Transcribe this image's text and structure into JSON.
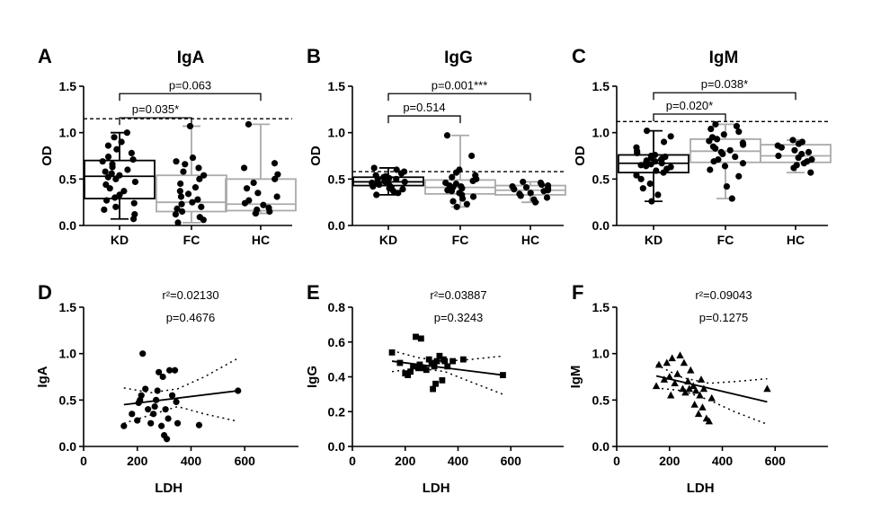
{
  "chart_data": [
    {
      "type": "box",
      "panel": "A",
      "title": "IgA",
      "ylabel": "OD",
      "ylim": [
        0,
        1.5
      ],
      "yticks": [
        "0.0",
        "0.5",
        "1.0",
        "1.5"
      ],
      "categories": [
        "KD",
        "FC",
        "HC"
      ],
      "threshold": 1.15,
      "groups": [
        {
          "name": "KD",
          "color": "#000000",
          "min": 0.07,
          "q1": 0.29,
          "median": 0.53,
          "q3": 0.7,
          "max": 1.0,
          "points": [
            0.07,
            0.12,
            0.17,
            0.2,
            0.24,
            0.27,
            0.3,
            0.33,
            0.37,
            0.4,
            0.44,
            0.47,
            0.5,
            0.52,
            0.54,
            0.56,
            0.58,
            0.6,
            0.63,
            0.66,
            0.69,
            0.71,
            0.74,
            0.78,
            0.82,
            0.86,
            0.9,
            0.95,
            1.0
          ]
        },
        {
          "name": "FC",
          "color": "#aaaaaa",
          "min": 0.03,
          "q1": 0.15,
          "median": 0.25,
          "q3": 0.54,
          "max": 1.07,
          "points": [
            0.03,
            0.06,
            0.09,
            0.12,
            0.15,
            0.18,
            0.2,
            0.23,
            0.25,
            0.28,
            0.31,
            0.34,
            0.37,
            0.41,
            0.45,
            0.5,
            0.54,
            0.58,
            0.62,
            0.66,
            0.69,
            0.73,
            1.07
          ]
        },
        {
          "name": "HC",
          "color": "#aaaaaa",
          "min": 0.13,
          "q1": 0.16,
          "median": 0.23,
          "q3": 0.5,
          "max": 1.09,
          "points": [
            0.13,
            0.15,
            0.17,
            0.19,
            0.22,
            0.24,
            0.27,
            0.31,
            0.35,
            0.4,
            0.46,
            0.5,
            0.55,
            0.62,
            0.67,
            1.09
          ]
        }
      ],
      "comparisons": [
        {
          "from": "KD",
          "to": "FC",
          "label": "p=0.035*",
          "y": 1.16
        },
        {
          "from": "KD",
          "to": "HC",
          "label": "p=0.063",
          "y": 1.42
        }
      ]
    },
    {
      "type": "box",
      "panel": "B",
      "title": "IgG",
      "ylabel": "OD",
      "ylim": [
        0,
        1.5
      ],
      "yticks": [
        "0.0",
        "0.5",
        "1.0",
        "1.5"
      ],
      "categories": [
        "KD",
        "FC",
        "HC"
      ],
      "threshold": 0.58,
      "groups": [
        {
          "name": "KD",
          "color": "#000000",
          "min": 0.33,
          "q1": 0.43,
          "median": 0.47,
          "q3": 0.52,
          "max": 0.62,
          "points": [
            0.33,
            0.35,
            0.37,
            0.39,
            0.4,
            0.41,
            0.42,
            0.43,
            0.44,
            0.45,
            0.45,
            0.46,
            0.47,
            0.47,
            0.48,
            0.49,
            0.5,
            0.5,
            0.51,
            0.52,
            0.53,
            0.54,
            0.56,
            0.58,
            0.6,
            0.62
          ]
        },
        {
          "name": "FC",
          "color": "#aaaaaa",
          "min": 0.2,
          "q1": 0.34,
          "median": 0.41,
          "q3": 0.49,
          "max": 0.97,
          "points": [
            0.2,
            0.23,
            0.26,
            0.29,
            0.31,
            0.33,
            0.35,
            0.37,
            0.38,
            0.4,
            0.41,
            0.42,
            0.43,
            0.45,
            0.46,
            0.48,
            0.5,
            0.52,
            0.54,
            0.57,
            0.6,
            0.75,
            0.97
          ]
        },
        {
          "name": "HC",
          "color": "#aaaaaa",
          "min": 0.25,
          "q1": 0.33,
          "median": 0.38,
          "q3": 0.43,
          "max": 0.47,
          "points": [
            0.25,
            0.28,
            0.3,
            0.32,
            0.34,
            0.35,
            0.37,
            0.38,
            0.39,
            0.4,
            0.41,
            0.42,
            0.43,
            0.44,
            0.46,
            0.47
          ]
        }
      ],
      "comparisons": [
        {
          "from": "KD",
          "to": "FC",
          "label": "p=0.514",
          "y": 1.18
        },
        {
          "from": "KD",
          "to": "HC",
          "label": "p=0.001***",
          "y": 1.42
        }
      ]
    },
    {
      "type": "box",
      "panel": "C",
      "title": "IgM",
      "ylabel": "OD",
      "ylim": [
        0,
        1.5
      ],
      "yticks": [
        "0.0",
        "0.5",
        "1.0",
        "1.5"
      ],
      "categories": [
        "KD",
        "FC",
        "HC"
      ],
      "threshold": 1.12,
      "groups": [
        {
          "name": "KD",
          "color": "#000000",
          "min": 0.26,
          "q1": 0.57,
          "median": 0.67,
          "q3": 0.76,
          "max": 1.02,
          "points": [
            0.26,
            0.33,
            0.4,
            0.45,
            0.5,
            0.54,
            0.57,
            0.59,
            0.61,
            0.63,
            0.64,
            0.65,
            0.66,
            0.67,
            0.68,
            0.69,
            0.7,
            0.71,
            0.72,
            0.73,
            0.74,
            0.75,
            0.76,
            0.78,
            0.8,
            0.84,
            0.9,
            0.96,
            1.02
          ]
        },
        {
          "name": "FC",
          "color": "#aaaaaa",
          "min": 0.29,
          "q1": 0.68,
          "median": 0.8,
          "q3": 0.93,
          "max": 1.09,
          "points": [
            0.29,
            0.42,
            0.53,
            0.6,
            0.64,
            0.67,
            0.69,
            0.71,
            0.74,
            0.77,
            0.79,
            0.81,
            0.83,
            0.85,
            0.87,
            0.89,
            0.91,
            0.93,
            0.95,
            0.98,
            1.01,
            1.04,
            1.07,
            1.09
          ]
        },
        {
          "name": "HC",
          "color": "#aaaaaa",
          "min": 0.57,
          "q1": 0.68,
          "median": 0.75,
          "q3": 0.87,
          "max": 0.92,
          "points": [
            0.57,
            0.62,
            0.65,
            0.67,
            0.69,
            0.71,
            0.73,
            0.75,
            0.77,
            0.79,
            0.81,
            0.84,
            0.86,
            0.88,
            0.9,
            0.92
          ]
        }
      ],
      "comparisons": [
        {
          "from": "KD",
          "to": "FC",
          "label": "p=0.020*",
          "y": 1.2
        },
        {
          "from": "KD",
          "to": "HC",
          "label": "p=0.038*",
          "y": 1.43
        }
      ]
    },
    {
      "type": "scatter",
      "panel": "D",
      "ylabel": "IgA",
      "xlabel": "LDH",
      "xlim": [
        0,
        800
      ],
      "ylim": [
        0,
        1.5
      ],
      "xticks": [
        "0",
        "200",
        "400",
        "600"
      ],
      "yticks": [
        "0.0",
        "0.5",
        "1.0",
        "1.5"
      ],
      "marker": "circle",
      "r2_label": "r²=0.02130",
      "p_label": "p=0.4676",
      "regression": {
        "x0": 150,
        "y0": 0.45,
        "x1": 575,
        "y1": 0.6
      },
      "ci_upper": [
        [
          150,
          0.63
        ],
        [
          250,
          0.58
        ],
        [
          350,
          0.62
        ],
        [
          450,
          0.75
        ],
        [
          575,
          0.95
        ]
      ],
      "ci_lower": [
        [
          150,
          0.25
        ],
        [
          250,
          0.34
        ],
        [
          350,
          0.43
        ],
        [
          450,
          0.35
        ],
        [
          575,
          0.27
        ]
      ],
      "points": [
        [
          150,
          0.22
        ],
        [
          180,
          0.35
        ],
        [
          200,
          0.28
        ],
        [
          205,
          0.47
        ],
        [
          210,
          0.5
        ],
        [
          215,
          0.55
        ],
        [
          220,
          1.0
        ],
        [
          230,
          0.62
        ],
        [
          240,
          0.4
        ],
        [
          250,
          0.25
        ],
        [
          260,
          0.35
        ],
        [
          265,
          0.43
        ],
        [
          270,
          0.5
        ],
        [
          275,
          0.6
        ],
        [
          280,
          0.8
        ],
        [
          290,
          0.22
        ],
        [
          295,
          0.75
        ],
        [
          300,
          0.12
        ],
        [
          305,
          0.4
        ],
        [
          310,
          0.08
        ],
        [
          315,
          0.3
        ],
        [
          320,
          0.82
        ],
        [
          330,
          0.55
        ],
        [
          340,
          0.82
        ],
        [
          345,
          0.48
        ],
        [
          350,
          0.25
        ],
        [
          430,
          0.23
        ],
        [
          575,
          0.6
        ]
      ]
    },
    {
      "type": "scatter",
      "panel": "E",
      "ylabel": "IgG",
      "xlabel": "LDH",
      "xlim": [
        0,
        800
      ],
      "ylim": [
        0,
        0.8
      ],
      "xticks": [
        "0",
        "200",
        "400",
        "600"
      ],
      "yticks": [
        "0.0",
        "0.2",
        "0.4",
        "0.6",
        "0.8"
      ],
      "marker": "square",
      "r2_label": "r²=0.03887",
      "p_label": "p=0.3243",
      "regression": {
        "x0": 150,
        "y0": 0.49,
        "x1": 570,
        "y1": 0.41
      },
      "ci_upper": [
        [
          150,
          0.55
        ],
        [
          250,
          0.51
        ],
        [
          350,
          0.49
        ],
        [
          450,
          0.5
        ],
        [
          570,
          0.52
        ]
      ],
      "ci_lower": [
        [
          150,
          0.43
        ],
        [
          250,
          0.45
        ],
        [
          350,
          0.43
        ],
        [
          450,
          0.37
        ],
        [
          570,
          0.3
        ]
      ],
      "points": [
        [
          150,
          0.54
        ],
        [
          180,
          0.48
        ],
        [
          200,
          0.42
        ],
        [
          210,
          0.41
        ],
        [
          220,
          0.43
        ],
        [
          230,
          0.46
        ],
        [
          240,
          0.63
        ],
        [
          250,
          0.45
        ],
        [
          255,
          0.47
        ],
        [
          260,
          0.62
        ],
        [
          270,
          0.45
        ],
        [
          280,
          0.44
        ],
        [
          290,
          0.5
        ],
        [
          300,
          0.48
        ],
        [
          305,
          0.33
        ],
        [
          310,
          0.46
        ],
        [
          315,
          0.36
        ],
        [
          320,
          0.49
        ],
        [
          330,
          0.52
        ],
        [
          340,
          0.38
        ],
        [
          345,
          0.5
        ],
        [
          350,
          0.49
        ],
        [
          360,
          0.46
        ],
        [
          380,
          0.49
        ],
        [
          420,
          0.5
        ],
        [
          570,
          0.41
        ]
      ]
    },
    {
      "type": "scatter",
      "panel": "F",
      "ylabel": "IgM",
      "xlabel": "LDH",
      "xlim": [
        0,
        800
      ],
      "ylim": [
        0,
        1.5
      ],
      "xticks": [
        "0",
        "200",
        "400",
        "600"
      ],
      "yticks": [
        "0.0",
        "0.5",
        "1.0",
        "1.5"
      ],
      "marker": "triangle",
      "r2_label": "r²=0.09043",
      "p_label": "p=0.1275",
      "regression": {
        "x0": 150,
        "y0": 0.76,
        "x1": 570,
        "y1": 0.48
      },
      "ci_upper": [
        [
          150,
          0.88
        ],
        [
          250,
          0.74
        ],
        [
          350,
          0.68
        ],
        [
          450,
          0.7
        ],
        [
          570,
          0.73
        ]
      ],
      "ci_lower": [
        [
          150,
          0.63
        ],
        [
          250,
          0.6
        ],
        [
          350,
          0.5
        ],
        [
          450,
          0.37
        ],
        [
          570,
          0.24
        ]
      ],
      "points": [
        [
          150,
          0.65
        ],
        [
          160,
          0.88
        ],
        [
          180,
          0.72
        ],
        [
          190,
          0.9
        ],
        [
          200,
          0.75
        ],
        [
          205,
          0.55
        ],
        [
          210,
          0.95
        ],
        [
          220,
          0.68
        ],
        [
          230,
          0.78
        ],
        [
          240,
          0.98
        ],
        [
          250,
          0.62
        ],
        [
          255,
          0.9
        ],
        [
          260,
          0.58
        ],
        [
          270,
          0.7
        ],
        [
          275,
          0.62
        ],
        [
          280,
          0.82
        ],
        [
          290,
          0.65
        ],
        [
          295,
          0.45
        ],
        [
          300,
          0.6
        ],
        [
          310,
          0.35
        ],
        [
          315,
          0.55
        ],
        [
          320,
          0.72
        ],
        [
          325,
          0.42
        ],
        [
          330,
          0.62
        ],
        [
          340,
          0.3
        ],
        [
          350,
          0.27
        ],
        [
          360,
          0.52
        ],
        [
          570,
          0.62
        ]
      ]
    }
  ]
}
